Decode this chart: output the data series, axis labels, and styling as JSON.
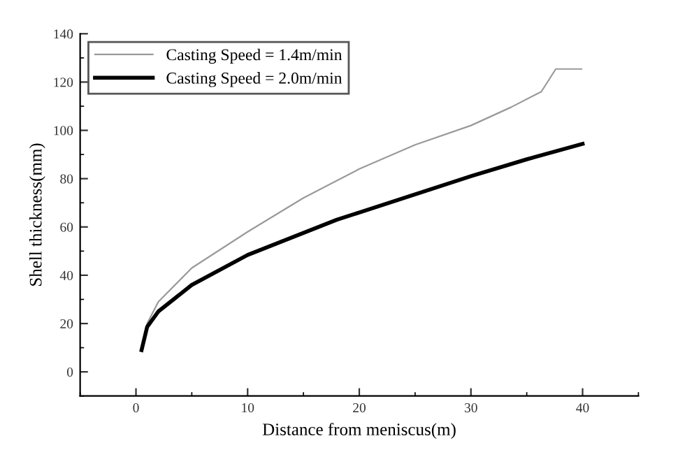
{
  "chart_data": {
    "type": "line",
    "xlabel": "Distance from meniscus(m)",
    "ylabel": "Shell thickness(mm)",
    "xlim": [
      -5,
      45
    ],
    "xticks": [
      0,
      10,
      20,
      30,
      40
    ],
    "ylim": [
      -10,
      140
    ],
    "yticks": [
      0,
      20,
      40,
      60,
      80,
      100,
      120,
      140
    ],
    "legend": "top left",
    "grid": false,
    "marker": "none",
    "line_style": "solid",
    "series": [
      {
        "name": "Casting Speed = 1.4m/min",
        "color": "#9a9a9a",
        "x": [
          0.5,
          1,
          2,
          5,
          10,
          15,
          20,
          25,
          30,
          33.6,
          36.3,
          37.6,
          39.9
        ],
        "values": [
          10,
          20,
          29,
          43,
          58,
          72,
          84,
          94,
          102,
          109.6,
          116,
          125.4,
          125.4
        ]
      },
      {
        "name": "Casting Speed = 2.0m/min",
        "color": "#000000",
        "x": [
          0.5,
          1,
          2,
          5,
          10,
          18,
          20,
          25,
          30,
          35,
          40
        ],
        "values": [
          9,
          18.6,
          25,
          36,
          48.4,
          63,
          66,
          73.5,
          81,
          88,
          94.4
        ]
      }
    ]
  }
}
